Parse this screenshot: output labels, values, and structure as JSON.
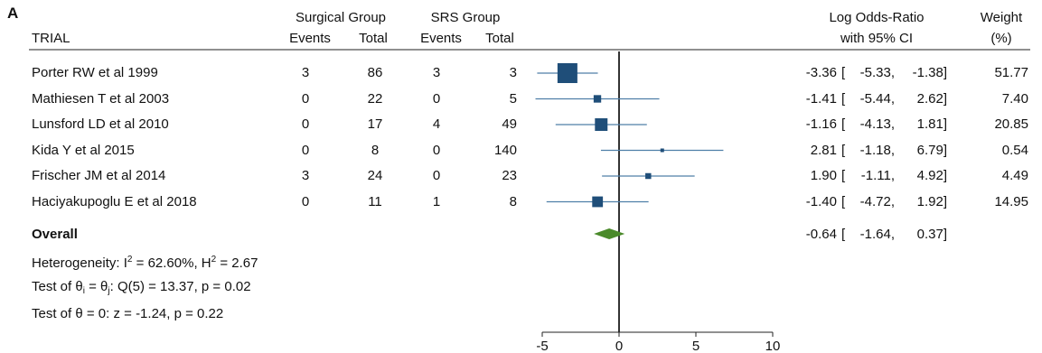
{
  "panel_label": "A",
  "headers": {
    "trial": "TRIAL",
    "surgical_group": "Surgical Group",
    "srs_group": "SRS Group",
    "events": "Events",
    "total": "Total",
    "lor_line1": "Log Odds-Ratio",
    "lor_line2": "with 95% CI",
    "weight_line1": "Weight",
    "weight_line2": "(%)"
  },
  "stats": {
    "heterogeneity_a": "Heterogeneity: I",
    "heterogeneity_sup": "2",
    "heterogeneity_b": " = 62.60%, H",
    "heterogeneity_sup2": "2",
    "heterogeneity_c": " = 2.67",
    "theta_a": "Test of θ",
    "theta_sub1": "i",
    "theta_b": " = θ",
    "theta_sub2": "j",
    "theta_c": ": Q(5) = 13.37, p = 0.02",
    "zero": "Test of θ = 0: z = -1.24, p = 0.22"
  },
  "colors": {
    "study_marker": "#1f4e79",
    "ci_line": "#4f7fa8",
    "overall_diamond": "#4a8a2a",
    "zero_line": "#000000"
  },
  "chart_data": {
    "type": "forest",
    "xlim": [
      -6,
      10
    ],
    "xticks": [
      -5,
      0,
      5,
      10
    ],
    "studies": [
      {
        "name": "Porter RW et al 1999",
        "s_events": "3",
        "s_total": "86",
        "r_events": "3",
        "r_total": "3",
        "est": -3.36,
        "lo": -5.33,
        "hi": -1.38,
        "est_text": "-3.36",
        "lo_text": "-5.33,",
        "hi_text": "-1.38]",
        "weight": "51.77"
      },
      {
        "name": "Mathiesen T et al 2003",
        "s_events": "0",
        "s_total": "22",
        "r_events": "0",
        "r_total": "5",
        "est": -1.41,
        "lo": -5.44,
        "hi": 2.62,
        "est_text": "-1.41",
        "lo_text": "-5.44,",
        "hi_text": "2.62]",
        "weight": "7.40"
      },
      {
        "name": "Lunsford LD et al 2010",
        "s_events": "0",
        "s_total": "17",
        "r_events": "4",
        "r_total": "49",
        "est": -1.16,
        "lo": -4.13,
        "hi": 1.81,
        "est_text": "-1.16",
        "lo_text": "-4.13,",
        "hi_text": "1.81]",
        "weight": "20.85"
      },
      {
        "name": "Kida Y et al  2015",
        "s_events": "0",
        "s_total": "8",
        "r_events": "0",
        "r_total": "140",
        "est": 2.81,
        "lo": -1.18,
        "hi": 6.79,
        "est_text": "2.81",
        "lo_text": "-1.18,",
        "hi_text": "6.79]",
        "weight": "0.54"
      },
      {
        "name": "Frischer JM et al 2014",
        "s_events": "3",
        "s_total": "24",
        "r_events": "0",
        "r_total": "23",
        "est": 1.9,
        "lo": -1.11,
        "hi": 4.92,
        "est_text": "1.90",
        "lo_text": "-1.11,",
        "hi_text": "4.92]",
        "weight": "4.49"
      },
      {
        "name": "Haciyakupoglu E et al 2018",
        "s_events": "0",
        "s_total": "11",
        "r_events": "1",
        "r_total": "8",
        "est": -1.4,
        "lo": -4.72,
        "hi": 1.92,
        "est_text": "-1.40",
        "lo_text": "-4.72,",
        "hi_text": "1.92]",
        "weight": "14.95"
      }
    ],
    "overall": {
      "name": "Overall",
      "est": -0.64,
      "lo": -1.64,
      "hi": 0.37,
      "est_text": "-0.64",
      "lo_text": "-1.64,",
      "hi_text": "0.37]"
    }
  }
}
